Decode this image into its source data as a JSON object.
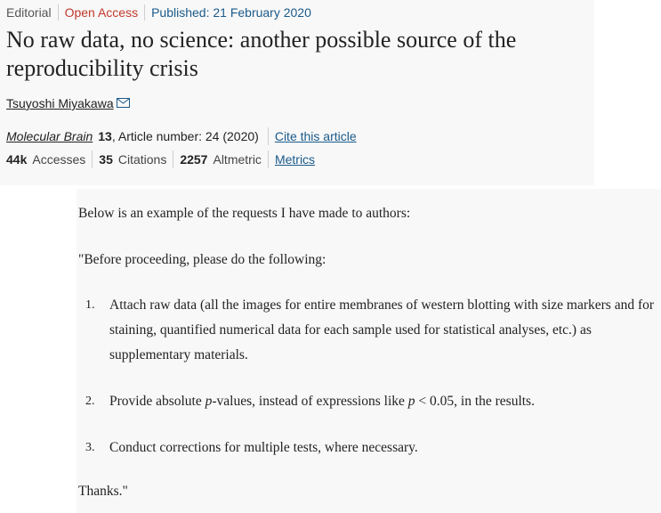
{
  "header": {
    "article_type": "Editorial",
    "open_access": "Open Access",
    "published": "Published: 21 February 2020",
    "title": "No raw data, no science: another possible source of the reproducibility crisis",
    "author": "Tsuyoshi Miyakawa",
    "mail_icon": "mail-icon",
    "journal": "Molecular Brain",
    "volume": "13",
    "article_number": ", Article number: 24 (2020)",
    "cite_link": "Cite this article",
    "metrics": [
      {
        "value": "44k",
        "label": "Accesses"
      },
      {
        "value": "35",
        "label": "Citations"
      },
      {
        "value": "2257",
        "label": "Altmetric"
      }
    ],
    "metrics_link": "Metrics"
  },
  "body": {
    "intro": "Below is an example of the requests I have made to authors:",
    "quote_start": "\"Before proceeding, please do the following:",
    "requests": [
      {
        "num": "1.",
        "text": "Attach raw data (all the images for entire membranes of western blotting with size markers and for staining, quantified numerical data for each sample used for statistical analyses, etc.) as supplementary materials."
      },
      {
        "num": "2.",
        "pre": "Provide absolute ",
        "p1": "p",
        "mid": "-values, instead of expressions like ",
        "p2": "p",
        "post": " < 0.05, in the results."
      },
      {
        "num": "3.",
        "text": "Conduct corrections for multiple tests, where necessary."
      }
    ],
    "thanks": "Thanks.\""
  }
}
